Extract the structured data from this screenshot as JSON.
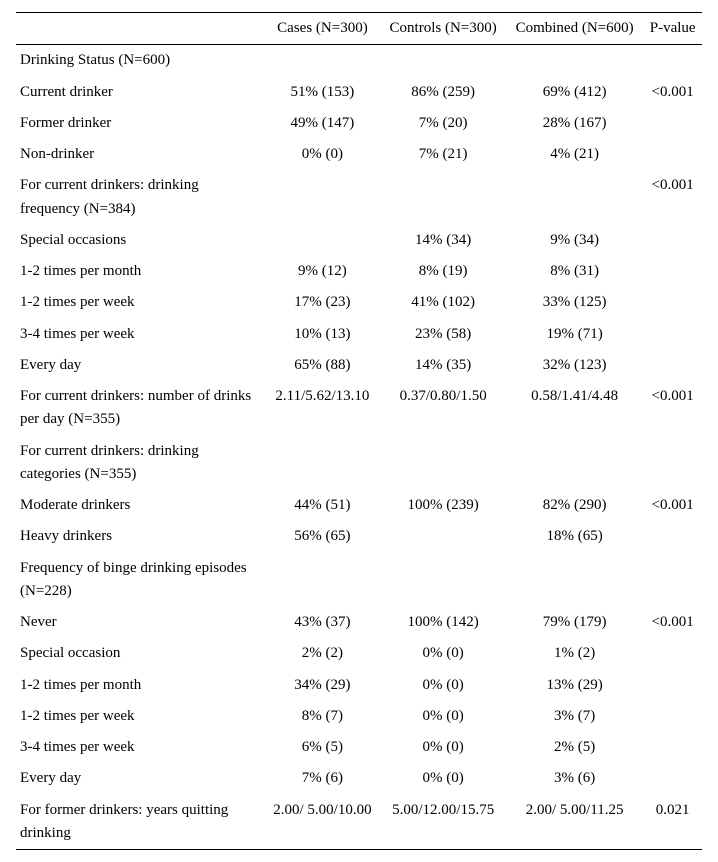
{
  "table": {
    "columns": [
      "",
      "Cases (N=300)",
      "Controls (N=300)",
      "Combined (N=600)",
      "P-value"
    ],
    "col_align": [
      "left",
      "center",
      "center",
      "center",
      "center"
    ],
    "font_family": "Times New Roman",
    "font_size_pt": 11,
    "border_color": "#000000",
    "background_color": "#ffffff",
    "text_color": "#000000",
    "rows": [
      [
        "Drinking Status (N=600)",
        "",
        "",
        "",
        ""
      ],
      [
        "Current drinker",
        "51% (153)",
        "86% (259)",
        "69% (412)",
        "<0.001"
      ],
      [
        "Former drinker",
        "49% (147)",
        "7% (20)",
        "28% (167)",
        ""
      ],
      [
        "Non-drinker",
        "0% (0)",
        "7% (21)",
        "4% (21)",
        ""
      ],
      [
        "For current drinkers: drinking frequency (N=384)",
        "",
        "",
        "",
        "<0.001"
      ],
      [
        "Special occasions",
        "",
        "14% (34)",
        "9% (34)",
        ""
      ],
      [
        "1-2 times per month",
        "9% (12)",
        "8% (19)",
        "8% (31)",
        ""
      ],
      [
        "1-2 times per week",
        "17% (23)",
        "41% (102)",
        "33% (125)",
        ""
      ],
      [
        "3-4 times per week",
        "10% (13)",
        "23% (58)",
        "19% (71)",
        ""
      ],
      [
        "Every day",
        "65% (88)",
        "14% (35)",
        "32% (123)",
        ""
      ],
      [
        "For current drinkers: number of drinks per day (N=355)",
        "2.11/5.62/13.10",
        "0.37/0.80/1.50",
        "0.58/1.41/4.48",
        "<0.001"
      ],
      [
        "For current drinkers: drinking categories (N=355)",
        "",
        "",
        "",
        ""
      ],
      [
        "Moderate drinkers",
        "44% (51)",
        "100% (239)",
        "82% (290)",
        "<0.001"
      ],
      [
        "Heavy drinkers",
        "56% (65)",
        "",
        "18% (65)",
        ""
      ],
      [
        "Frequency of binge drinking episodes (N=228)",
        "",
        "",
        "",
        ""
      ],
      [
        "Never",
        "43% (37)",
        "100% (142)",
        "79% (179)",
        "<0.001"
      ],
      [
        "Special occasion",
        "2% (2)",
        "0% (0)",
        "1% (2)",
        ""
      ],
      [
        "1-2 times per month",
        "34% (29)",
        "0% (0)",
        "13% (29)",
        ""
      ],
      [
        "1-2 times per week",
        "8% (7)",
        "0% (0)",
        "3% (7)",
        ""
      ],
      [
        "3-4 times per week",
        "6% (5)",
        "0% (0)",
        "2% (5)",
        ""
      ],
      [
        "Every day",
        "7% (6)",
        "0% (0)",
        "3% (6)",
        ""
      ],
      [
        "For former drinkers: years quitting drinking",
        "2.00/ 5.00/10.00",
        "5.00/12.00/15.75",
        "2.00/ 5.00/11.25",
        "0.021"
      ]
    ]
  }
}
